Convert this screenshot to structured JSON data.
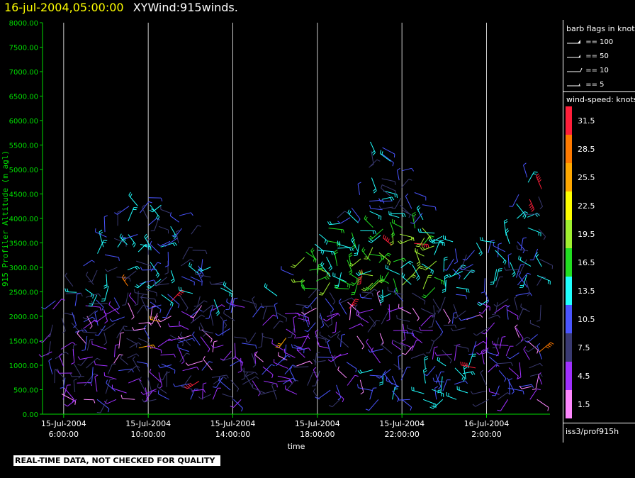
{
  "header": {
    "datetime": "16-jul-2004,05:00:00",
    "title": "XYWind:915winds."
  },
  "chart_data": {
    "type": "scatter",
    "subtype": "wind-barbs",
    "ylabel": "915 Profiler Altitude (m agl)",
    "xlabel": "time",
    "ylim": [
      0,
      8000
    ],
    "yticks": [
      "0.00",
      "500.00",
      "1000.00",
      "1500.00",
      "2000.00",
      "2500.00",
      "3000.00",
      "3500.00",
      "4000.00",
      "4500.00",
      "5000.00",
      "5500.00",
      "6000.00",
      "6500.00",
      "7000.00",
      "7500.00",
      "8000.00"
    ],
    "xticks": [
      {
        "date": "15-Jul-2004",
        "time": "6:00:00"
      },
      {
        "date": "15-Jul-2004",
        "time": "10:00:00"
      },
      {
        "date": "15-Jul-2004",
        "time": "14:00:00"
      },
      {
        "date": "15-Jul-2004",
        "time": "18:00:00"
      },
      {
        "date": "15-Jul-2004",
        "time": "22:00:00"
      },
      {
        "date": "16-Jul-2004",
        "time": "2:00:00"
      }
    ],
    "xlim_hours": [
      5,
      29
    ],
    "grid": "vertical at time ticks",
    "speed_bins": [
      {
        "label": "31.5",
        "color": "#ff1f3a"
      },
      {
        "label": "28.5",
        "color": "#ff7a00"
      },
      {
        "label": "25.5",
        "color": "#ffa800"
      },
      {
        "label": "22.5",
        "color": "#ffff00"
      },
      {
        "label": "19.5",
        "color": "#a0f030"
      },
      {
        "label": "16.5",
        "color": "#22dd22"
      },
      {
        "label": "13.5",
        "color": "#20ffff"
      },
      {
        "label": "10.5",
        "color": "#4a55ff"
      },
      {
        "label": "7.5",
        "color": "#3a3a72"
      },
      {
        "label": "4.5",
        "color": "#a030ff"
      },
      {
        "label": "1.5",
        "color": "#ff88ff"
      }
    ]
  },
  "legend": {
    "barb_title": "barb flags in knots",
    "flags": [
      "== 100",
      "== 50",
      "== 10",
      "== 5"
    ],
    "speed_title": "wind-speed: knots",
    "source": "iss3/prof915h"
  },
  "footer": {
    "qc_note": "REAL-TIME DATA, NOT CHECKED FOR QUALITY"
  },
  "colors": {
    "axis": "#00dd00",
    "grid": "#ffffff",
    "background": "#000000"
  }
}
